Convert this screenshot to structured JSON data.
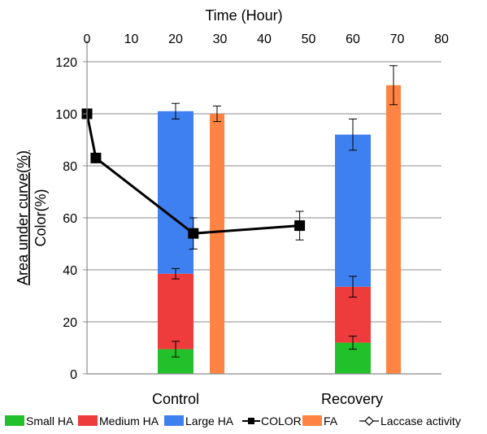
{
  "chart_data": {
    "type": "bar",
    "top_axis": {
      "label": "Time (Hour)",
      "range": [
        0,
        80
      ],
      "ticks": [
        "0",
        "10",
        "20",
        "30",
        "40",
        "50",
        "60",
        "70",
        "80"
      ]
    },
    "y_axis": {
      "label_line1": "Area under curve(%)",
      "label_line2": "Color(%)",
      "range": [
        0,
        120
      ],
      "ticks": [
        "0",
        "20",
        "40",
        "60",
        "80",
        "100",
        "120"
      ]
    },
    "grid": true,
    "categories": [
      "Control",
      "Recovery"
    ],
    "stacked_series": [
      {
        "name": "Small HA",
        "color": "#22c02a",
        "values": [
          9.5,
          12
        ],
        "errors": [
          3,
          2.5
        ]
      },
      {
        "name": "Medium HA",
        "color": "#ee3b3b",
        "values": [
          29,
          21.5
        ],
        "errors": [
          2,
          4
        ]
      },
      {
        "name": "Large HA",
        "color": "#3f80f0",
        "values": [
          62.5,
          58.5
        ],
        "errors": [
          3,
          6
        ]
      }
    ],
    "fa_series": {
      "name": "FA",
      "color": "#ff8444",
      "values": [
        100,
        111
      ],
      "errors": [
        3,
        7.5
      ]
    },
    "color_series": {
      "name": "COLOR",
      "points": [
        {
          "x": 0,
          "y": 100,
          "error": 0
        },
        {
          "x": 2,
          "y": 83,
          "error": 0
        },
        {
          "x": 24,
          "y": 54,
          "error": 6
        },
        {
          "x": 48,
          "y": 57,
          "error": 5.5
        }
      ]
    },
    "legend": {
      "placement": "bottom",
      "items": [
        {
          "label": "Small HA",
          "kind": "swatch",
          "color": "#22c02a"
        },
        {
          "label": "Medium HA",
          "kind": "swatch",
          "color": "#ee3b3b"
        },
        {
          "label": "Large HA",
          "kind": "swatch",
          "color": "#3f80f0"
        },
        {
          "label": "COLOR",
          "kind": "line-square",
          "color": "#000000"
        },
        {
          "label": "FA",
          "kind": "swatch",
          "color": "#ff8444"
        },
        {
          "label": "Laccase activity",
          "kind": "line-diamond",
          "color": "#000000"
        }
      ]
    }
  }
}
